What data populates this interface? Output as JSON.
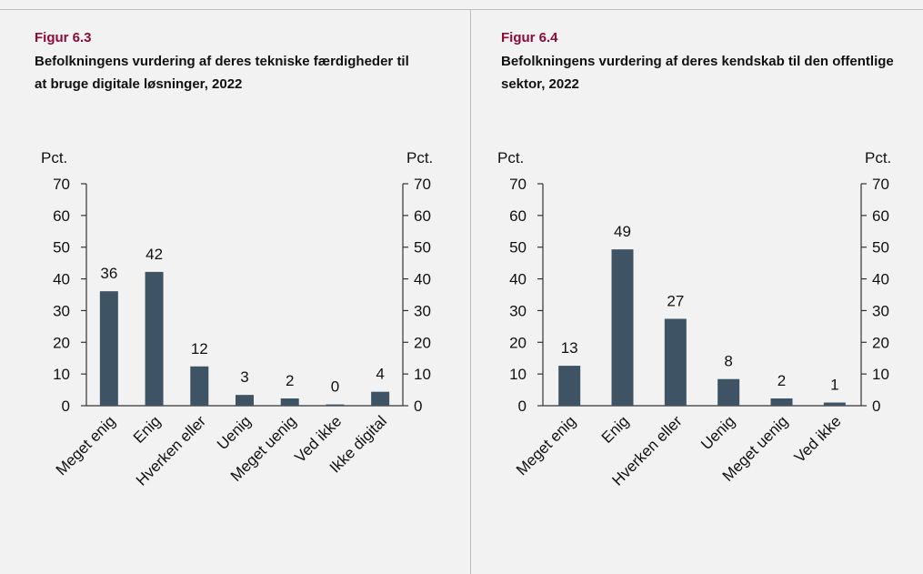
{
  "chart_data": [
    {
      "type": "bar",
      "title": "Figur 6.3",
      "subtitle": "Befolkningens vurdering af deres tekniske færdigheder til at bruge digitale løsninger, 2022",
      "ylabel": "Pct.",
      "y2label": "Pct.",
      "categories": [
        "Meget enig",
        "Enig",
        "Hverken eller",
        "Uenig",
        "Meget uenig",
        "Ved ikke",
        "Ikke digital"
      ],
      "values": [
        36.1,
        42.2,
        12.4,
        3.4,
        2.3,
        0.4,
        4.4
      ],
      "value_labels": [
        "36",
        "42",
        "12",
        "3",
        "2",
        "0",
        "4"
      ],
      "color": "#3e5465",
      "ylim": [
        0,
        70
      ],
      "yticks": [
        0,
        10,
        20,
        30,
        40,
        50,
        60,
        70
      ],
      "y2lim": [
        0,
        70
      ],
      "y2ticks": [
        0,
        10,
        20,
        30,
        40,
        50,
        60,
        70
      ]
    },
    {
      "type": "bar",
      "title": "Figur 6.4",
      "subtitle": "Befolkningens vurdering af deres kendskab til den offentlige sektor, 2022",
      "ylabel": "Pct.",
      "y2label": "Pct.",
      "categories": [
        "Meget enig",
        "Enig",
        "Hverken eller",
        "Uenig",
        "Meget uenig",
        "Ved ikke"
      ],
      "values": [
        12.6,
        49.3,
        27.4,
        8.4,
        2.3,
        1
      ],
      "value_labels": [
        "13",
        "49",
        "27",
        "8",
        "2",
        "1"
      ],
      "color": "#3e5465",
      "ylim": [
        0,
        70
      ],
      "yticks": [
        0,
        10,
        20,
        30,
        40,
        50,
        60,
        70
      ],
      "y2lim": [
        0,
        70
      ],
      "y2ticks": [
        0,
        10,
        20,
        30,
        40,
        50,
        60,
        70
      ]
    }
  ]
}
